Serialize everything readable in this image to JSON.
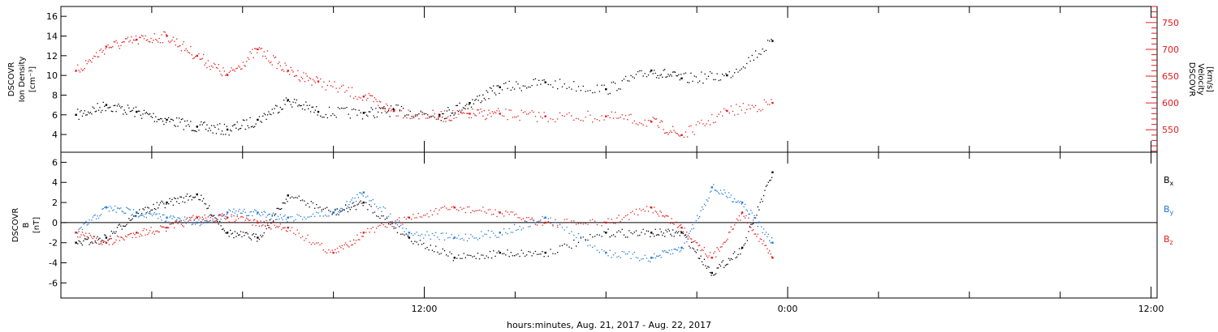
{
  "chart_data": [
    {
      "type": "scatter",
      "panel": "top",
      "left_axis": {
        "label_lines": [
          "DSCOVR",
          "Ion Density",
          "[cm⁻³]"
        ],
        "ticks": [
          4,
          6,
          8,
          10,
          12,
          14,
          16
        ],
        "ylim": [
          2.2,
          17.0
        ]
      },
      "right_axis": {
        "label_lines": [
          "DSCOVR",
          "Velocity",
          "[km/s]"
        ],
        "ticks": [
          550,
          600,
          650,
          700,
          750
        ],
        "ylim": [
          508,
          780
        ],
        "color": "#e41a1c"
      },
      "series": [
        {
          "color": "#000000",
          "axis": "left",
          "x": [
            -23.5,
            -22.5,
            -21.5,
            -20.5,
            -19.5,
            -18.5,
            -17.5,
            -16.5,
            -15.5,
            -14.0,
            -13.0,
            -11.5,
            -10.5,
            -9.5,
            -8.0,
            -6.0,
            -4.5,
            -3.5,
            -2.0,
            -0.5
          ],
          "y": [
            6.0,
            7.0,
            6.3,
            5.5,
            4.8,
            4.5,
            5.5,
            7.5,
            6.3,
            6.2,
            6.5,
            6.0,
            7.2,
            8.8,
            9.3,
            8.6,
            10.5,
            9.7,
            10.0,
            13.5
          ]
        },
        {
          "color": "#e41a1c",
          "axis": "right",
          "x": [
            -23.5,
            -22.5,
            -21.5,
            -20.5,
            -19.5,
            -18.5,
            -17.5,
            -16.5,
            -15.5,
            -14.0,
            -13.0,
            -11.5,
            -10.5,
            -9.5,
            -8.0,
            -6.0,
            -4.5,
            -3.5,
            -2.0,
            -0.5
          ],
          "y": [
            660,
            705,
            718,
            725,
            688,
            652,
            700,
            660,
            640,
            612,
            585,
            575,
            580,
            580,
            575,
            575,
            565,
            540,
            585,
            600
          ]
        }
      ]
    },
    {
      "type": "scatter",
      "panel": "bottom",
      "left_axis": {
        "label_lines": [
          "DSCOVR",
          "B",
          "[nT]"
        ],
        "ticks": [
          -6,
          -4,
          -2,
          0,
          2,
          4,
          6
        ],
        "ylim": [
          -7.5,
          7.0
        ]
      },
      "zero_line": true,
      "legend": {
        "position": "right",
        "entries": [
          "Bx",
          "By",
          "Bz"
        ]
      },
      "series": [
        {
          "name": "Bx",
          "color": "#000000",
          "x": [
            -23.5,
            -22.5,
            -21.5,
            -20.5,
            -19.5,
            -18.5,
            -17.5,
            -16.5,
            -15.0,
            -14.0,
            -12.5,
            -11.0,
            -9.5,
            -8.0,
            -6.0,
            -4.5,
            -3.5,
            -2.5,
            -1.5,
            -0.5
          ],
          "y": [
            -2.0,
            -1.5,
            1.0,
            2.0,
            2.8,
            -1.0,
            -1.5,
            2.7,
            1.0,
            2.0,
            -1.5,
            -3.5,
            -3.0,
            -3.0,
            -1.0,
            -1.0,
            -1.0,
            -5.0,
            -2.5,
            5.0
          ]
        },
        {
          "name": "By",
          "color": "#1f78d1",
          "x": [
            -23.5,
            -22.5,
            -21.5,
            -20.5,
            -19.5,
            -18.5,
            -17.5,
            -16.5,
            -15.0,
            -14.0,
            -12.5,
            -11.0,
            -9.5,
            -8.0,
            -6.0,
            -4.5,
            -3.5,
            -2.5,
            -1.5,
            -0.5
          ],
          "y": [
            -1.0,
            1.5,
            1.0,
            0.5,
            0.0,
            1.0,
            1.0,
            0.5,
            1.0,
            3.0,
            -1.0,
            -1.5,
            -1.0,
            0.5,
            -3.0,
            -3.5,
            -2.5,
            3.5,
            2.0,
            -2.0
          ]
        },
        {
          "name": "Bz",
          "color": "#e41a1c",
          "x": [
            -23.5,
            -22.5,
            -21.5,
            -20.5,
            -19.5,
            -18.5,
            -17.5,
            -16.5,
            -15.0,
            -14.0,
            -12.5,
            -11.0,
            -9.5,
            -8.0,
            -6.0,
            -4.5,
            -3.5,
            -2.5,
            -1.5,
            -0.5
          ],
          "y": [
            -1.0,
            -2.0,
            -1.0,
            -0.5,
            0.5,
            0.5,
            0.0,
            -0.5,
            -3.0,
            -1.0,
            0.5,
            1.5,
            1.0,
            0.0,
            0.0,
            1.5,
            -0.5,
            -3.5,
            1.0,
            -3.5
          ]
        }
      ]
    }
  ],
  "x_axis": {
    "xlim": [
      -24.0,
      12.2
    ],
    "ticks": [
      {
        "value": -12,
        "label": "12:00"
      },
      {
        "value": 0,
        "label": "0:00"
      },
      {
        "value": 12,
        "label": "12:00"
      }
    ],
    "title": "hours:minutes, Aug. 21, 2017 - Aug. 22, 2017"
  },
  "legend_labels": {
    "bx_main": "B",
    "bx_sub": "x",
    "by_main": "B",
    "by_sub": "y",
    "bz_main": "B",
    "bz_sub": "z"
  }
}
